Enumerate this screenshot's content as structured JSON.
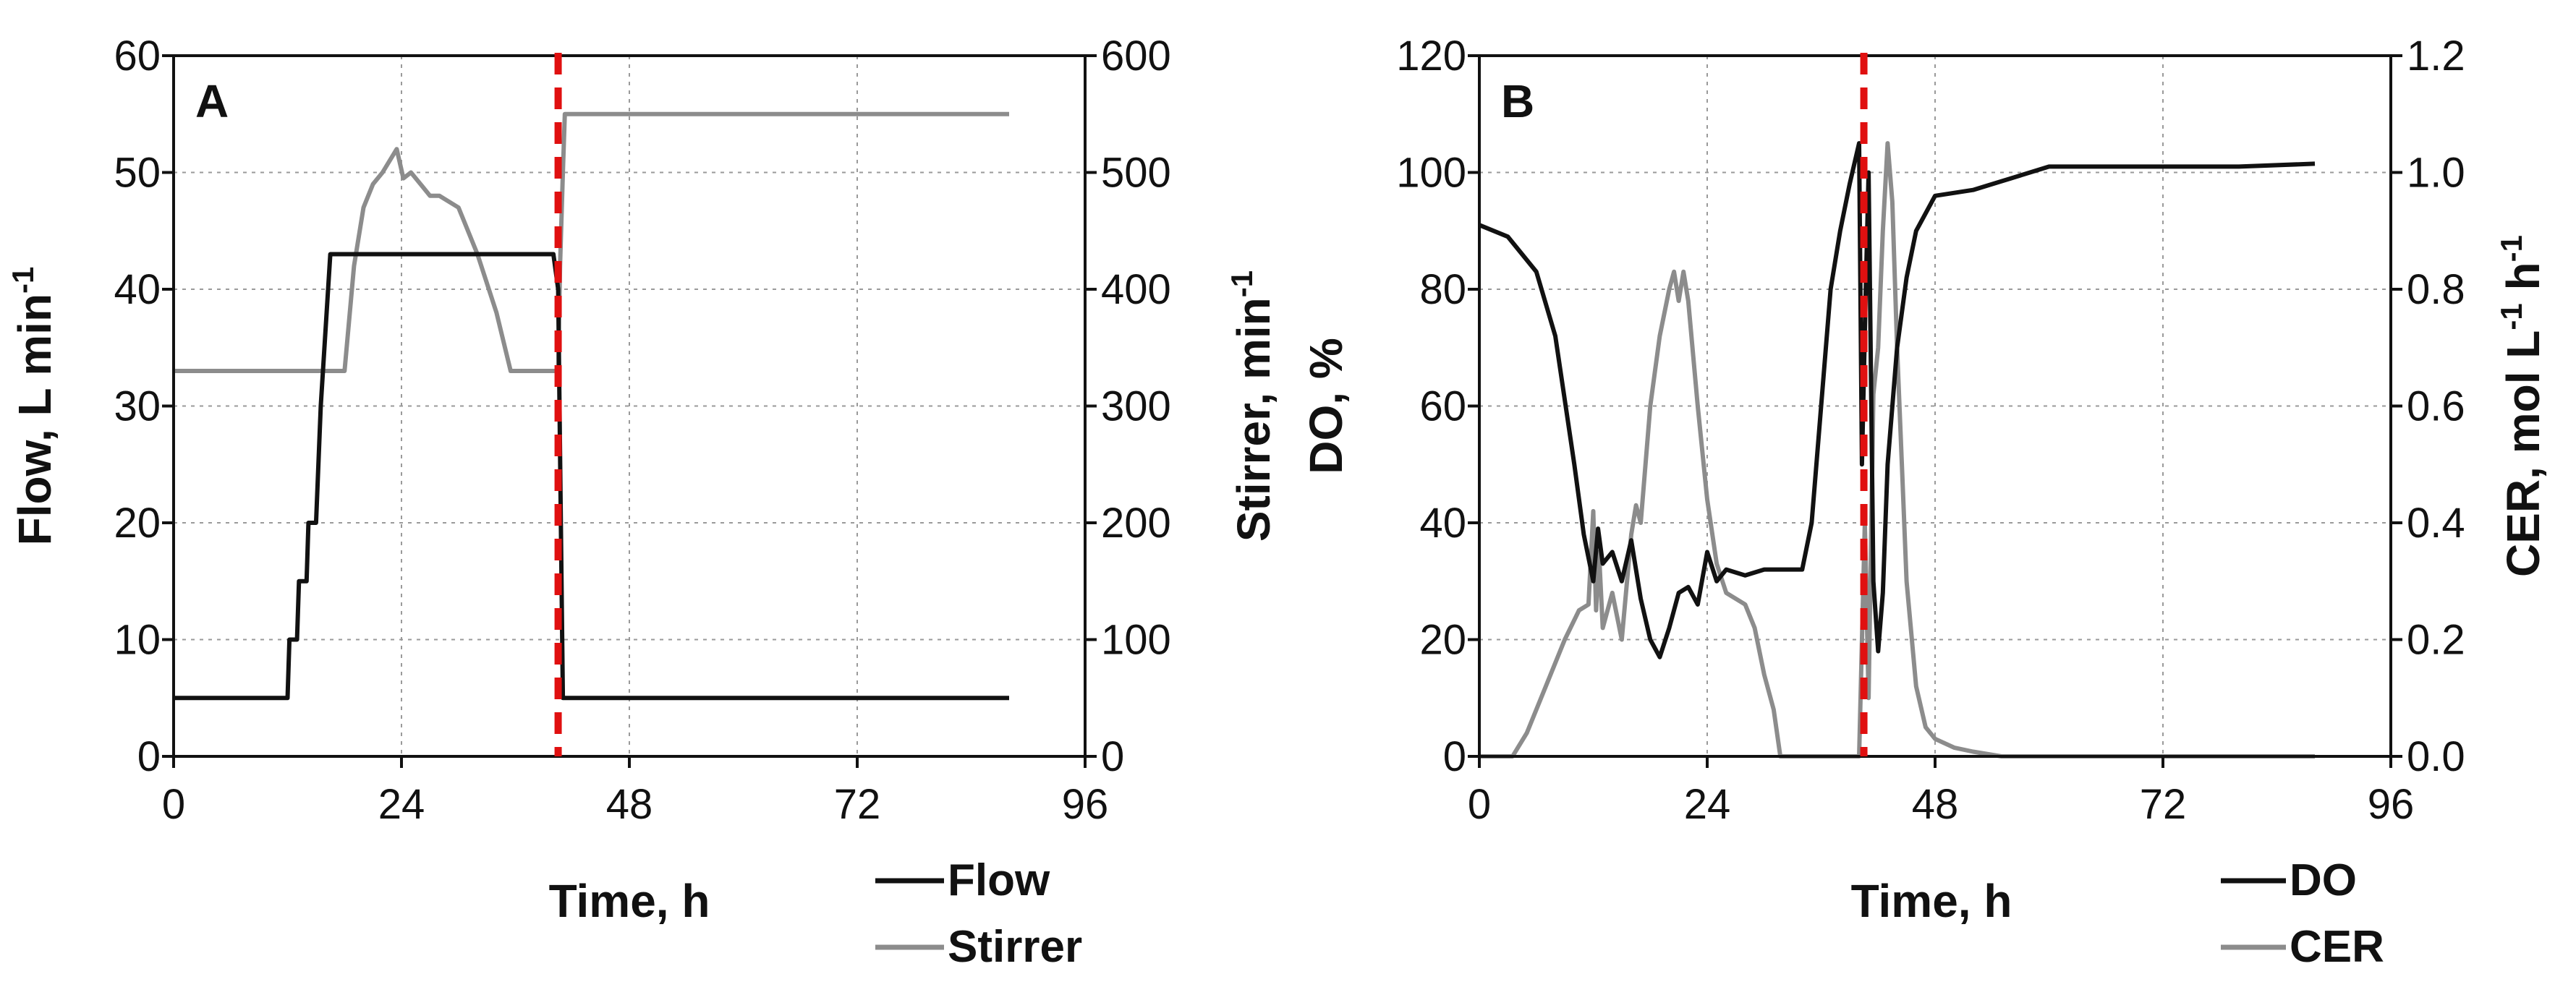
{
  "chart_data": [
    {
      "panel_label": "A",
      "type": "line",
      "xlabel": "Time, h",
      "xlim": [
        0,
        96
      ],
      "xticks": [
        "0",
        "24",
        "48",
        "72",
        "96"
      ],
      "ylabel": {
        "main": "Flow, L min",
        "sup": "-1"
      },
      "ylim": [
        0,
        60
      ],
      "yticks": [
        "0",
        "10",
        "20",
        "30",
        "40",
        "50",
        "60"
      ],
      "y2label": {
        "main": "Stirrer, min",
        "sup": "-1"
      },
      "y2lim": [
        0,
        600
      ],
      "y2ticks": [
        "0",
        "100",
        "200",
        "300",
        "400",
        "500",
        "600"
      ],
      "grid": true,
      "event_line_x": 40.5,
      "series": [
        {
          "name": "Flow",
          "axis": "left",
          "color": "#111111",
          "x": [
            0,
            12,
            12.2,
            13,
            13.2,
            14,
            14.2,
            15,
            15.5,
            16.5,
            40,
            40.5,
            41,
            45,
            88
          ],
          "y": [
            5,
            5,
            10,
            10,
            15,
            15,
            20,
            20,
            30,
            43,
            43,
            40,
            5,
            5,
            5
          ]
        },
        {
          "name": "Stirrer",
          "axis": "right",
          "color": "#8c8c8c",
          "x": [
            0,
            18,
            19,
            20,
            21,
            22,
            23.5,
            24.2,
            25,
            26,
            27,
            28,
            30,
            32,
            34,
            35.5,
            40.5,
            40.7,
            41,
            41.2,
            88
          ],
          "y": [
            330,
            330,
            420,
            470,
            490,
            500,
            520,
            495,
            500,
            490,
            480,
            480,
            470,
            430,
            380,
            330,
            330,
            420,
            500,
            550,
            550
          ]
        }
      ],
      "legend": [
        "Flow",
        "Stirrer"
      ]
    },
    {
      "panel_label": "B",
      "type": "line",
      "xlabel": "Time, h",
      "xlim": [
        0,
        96
      ],
      "xticks": [
        "0",
        "24",
        "48",
        "72",
        "96"
      ],
      "ylabel": {
        "main": "DO, %",
        "sup": ""
      },
      "ylim": [
        0,
        120
      ],
      "yticks": [
        "0",
        "20",
        "40",
        "60",
        "80",
        "100",
        "120"
      ],
      "y2label": {
        "main": "CER, mol L",
        "sup1": "-1",
        "mid": " h",
        "sup2": "-1"
      },
      "y2lim": [
        0,
        1.2
      ],
      "y2ticks": [
        "0.0",
        "0.2",
        "0.4",
        "0.6",
        "0.8",
        "1.0",
        "1.2"
      ],
      "grid": true,
      "event_line_x": 40.5,
      "series": [
        {
          "name": "DO",
          "axis": "left",
          "color": "#111111",
          "x": [
            0,
            3,
            6,
            8,
            10,
            11,
            12,
            12.5,
            13,
            14,
            15,
            16,
            17,
            18,
            19,
            20,
            21,
            22,
            23,
            24,
            25,
            26,
            28,
            30,
            32,
            33,
            34,
            35,
            36,
            37,
            38,
            39,
            40,
            40.3,
            40.7,
            41,
            41.5,
            42,
            42.5,
            43,
            44,
            45,
            46,
            48,
            52,
            56,
            60,
            64,
            70,
            80,
            88
          ],
          "y": [
            91,
            89,
            83,
            72,
            50,
            38,
            30,
            39,
            33,
            35,
            30,
            37,
            27,
            20,
            17,
            22,
            28,
            29,
            26,
            35,
            30,
            32,
            31,
            32,
            32,
            32,
            32,
            40,
            60,
            80,
            90,
            98,
            105,
            50,
            80,
            100,
            30,
            18,
            28,
            50,
            70,
            82,
            90,
            96,
            97,
            99,
            101,
            101,
            101,
            101,
            101.5
          ]
        },
        {
          "name": "CER",
          "axis": "right",
          "color": "#8c8c8c",
          "x": [
            0,
            3.5,
            5,
            7,
            9,
            10.5,
            11.5,
            12,
            12.3,
            12.6,
            13,
            14,
            15,
            16,
            16.5,
            17,
            18,
            19,
            20,
            20.5,
            21,
            21.5,
            22,
            23,
            24,
            25,
            26,
            28,
            29,
            30,
            31,
            31.7,
            40,
            40.6,
            41,
            41.5,
            42,
            42.5,
            43,
            43.5,
            44,
            44.5,
            45,
            46,
            47,
            48,
            50,
            52,
            55,
            56,
            88
          ],
          "y": [
            0,
            0,
            0.04,
            0.12,
            0.2,
            0.25,
            0.26,
            0.42,
            0.25,
            0.35,
            0.22,
            0.28,
            0.2,
            0.38,
            0.43,
            0.4,
            0.6,
            0.72,
            0.8,
            0.83,
            0.78,
            0.83,
            0.78,
            0.6,
            0.44,
            0.33,
            0.28,
            0.26,
            0.22,
            0.14,
            0.08,
            0,
            0,
            0.4,
            0.1,
            0.62,
            0.7,
            0.9,
            1.05,
            0.95,
            0.7,
            0.5,
            0.3,
            0.12,
            0.05,
            0.03,
            0.015,
            0.008,
            0,
            0,
            0
          ]
        }
      ],
      "legend": [
        "DO",
        "CER"
      ]
    }
  ]
}
